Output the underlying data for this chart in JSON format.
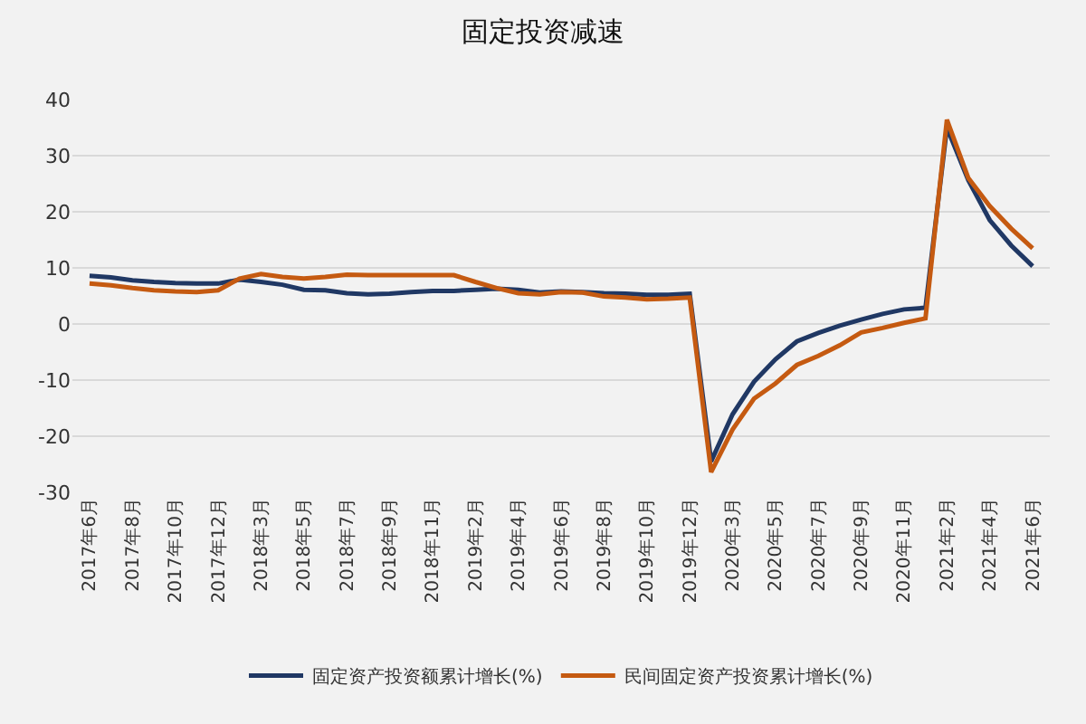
{
  "chart_data": {
    "type": "line",
    "title": "固定投资减速",
    "categories": [
      "2017年6月",
      null,
      "2017年8月",
      null,
      "2017年10月",
      null,
      "2017年12月",
      null,
      "2018年3月",
      null,
      "2018年5月",
      null,
      "2018年7月",
      null,
      "2018年9月",
      null,
      "2018年11月",
      null,
      "2019年2月",
      null,
      "2019年4月",
      null,
      "2019年6月",
      null,
      "2019年8月",
      null,
      "2019年10月",
      null,
      "2019年12月",
      null,
      "2020年3月",
      null,
      "2020年5月",
      null,
      "2020年7月",
      null,
      "2020年9月",
      null,
      "2020年11月",
      null,
      "2021年2月",
      null,
      "2021年4月",
      null,
      "2021年6月"
    ],
    "series": [
      {
        "name": "固定资产投资额累计增长(%)",
        "color": "#203864",
        "values": [
          8.6,
          8.3,
          7.8,
          7.5,
          7.3,
          7.2,
          7.2,
          7.9,
          7.5,
          7.0,
          6.1,
          6.0,
          5.5,
          5.3,
          5.4,
          5.7,
          5.9,
          5.9,
          6.1,
          6.3,
          6.1,
          5.6,
          5.8,
          5.7,
          5.5,
          5.4,
          5.2,
          5.2,
          5.4,
          -24.5,
          -16.1,
          -10.3,
          -6.3,
          -3.1,
          -1.6,
          -0.3,
          0.8,
          1.8,
          2.6,
          2.9,
          35.0,
          25.6,
          18.5,
          14.0,
          10.3
        ]
      },
      {
        "name": "民间固定资产投资累计增长(%)",
        "color": "#c55a11",
        "values": [
          7.2,
          6.9,
          6.4,
          6.0,
          5.8,
          5.7,
          6.0,
          8.1,
          8.9,
          8.4,
          8.1,
          8.4,
          8.8,
          8.7,
          8.7,
          8.7,
          8.7,
          8.7,
          7.5,
          6.4,
          5.5,
          5.3,
          5.7,
          5.6,
          4.9,
          4.7,
          4.4,
          4.5,
          4.7,
          -26.4,
          -18.8,
          -13.3,
          -10.6,
          -7.3,
          -5.7,
          -3.8,
          -1.5,
          -0.7,
          0.2,
          1.0,
          36.4,
          26.0,
          21.0,
          17.0,
          13.5
        ]
      }
    ],
    "ylim": [
      -30,
      40
    ],
    "yticks": [
      -30,
      -20,
      -10,
      0,
      10,
      20,
      30,
      40
    ],
    "grid": "y",
    "legend": "bottom",
    "marker": "none",
    "line_style": "solid"
  }
}
